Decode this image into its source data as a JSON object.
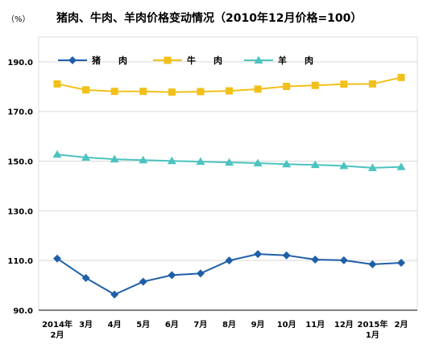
{
  "chart_data": {
    "type": "line",
    "title": "猪肉、牛肉、羊肉价格变动情况（2010年12月价格=100）",
    "unit": "（%）",
    "categories": [
      [
        "2014年",
        "2月"
      ],
      [
        "3月"
      ],
      [
        "4月"
      ],
      [
        "5月"
      ],
      [
        "6月"
      ],
      [
        "7月"
      ],
      [
        "8月"
      ],
      [
        "9月"
      ],
      [
        "10月"
      ],
      [
        "11月"
      ],
      [
        "12月"
      ],
      [
        "2015年",
        "1月"
      ],
      [
        "2月"
      ]
    ],
    "ylim": [
      90,
      200
    ],
    "yticks": [
      "90.0",
      "110.0",
      "130.0",
      "150.0",
      "170.0",
      "190.0"
    ],
    "grid": true,
    "legend_position": "top-left",
    "series": [
      {
        "name": "猪　　肉",
        "color": "#1f5fa8",
        "marker": "diamond",
        "values": [
          110.8,
          103.0,
          96.3,
          101.5,
          104.1,
          104.8,
          110.0,
          112.6,
          112.1,
          110.4,
          110.1,
          108.5,
          109.1
        ]
      },
      {
        "name": "牛　　肉",
        "color": "#f2c01a",
        "marker": "square",
        "values": [
          181.1,
          178.7,
          178.1,
          178.1,
          177.8,
          178.0,
          178.3,
          179.0,
          180.1,
          180.5,
          181.0,
          181.1,
          183.7
        ]
      },
      {
        "name": "羊　　肉",
        "color": "#4cc3bf",
        "marker": "triangle",
        "values": [
          152.7,
          151.5,
          150.8,
          150.4,
          150.1,
          149.8,
          149.5,
          149.2,
          148.8,
          148.5,
          148.1,
          147.3,
          147.7
        ]
      }
    ]
  }
}
